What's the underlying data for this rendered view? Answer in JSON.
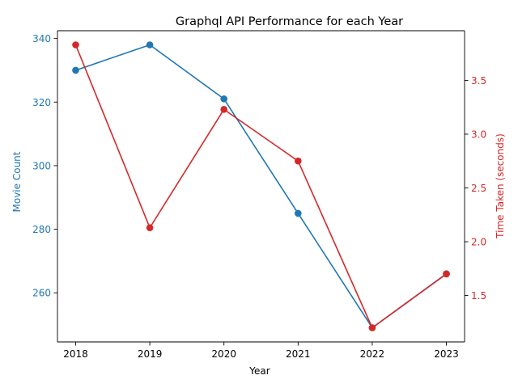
{
  "chart_data": {
    "type": "line",
    "title": "Graphql API Performance for each Year",
    "xlabel": "Year",
    "categories": [
      "2018",
      "2019",
      "2020",
      "2021",
      "2022",
      "2023"
    ],
    "series": [
      {
        "axis": "left",
        "color": "#1f77b4",
        "values": [
          330,
          338,
          321,
          285,
          249,
          266
        ]
      },
      {
        "axis": "right",
        "color": "#d62728",
        "values": [
          3.83,
          2.13,
          3.23,
          2.75,
          1.2,
          1.7
        ]
      }
    ],
    "y_left": {
      "label": "Movie Count",
      "color": "#1f77b4",
      "ylim": [
        244.55,
        342.45
      ],
      "ticks": [
        "260",
        "280",
        "300",
        "320",
        "340"
      ]
    },
    "y_right": {
      "label": "Time Taken (seconds)",
      "color": "#d62728",
      "ylim": [
        1.0685,
        3.9615
      ],
      "ticks": [
        "1.5",
        "2.0",
        "2.5",
        "3.0",
        "3.5"
      ]
    },
    "grid": false,
    "legend": "none"
  }
}
